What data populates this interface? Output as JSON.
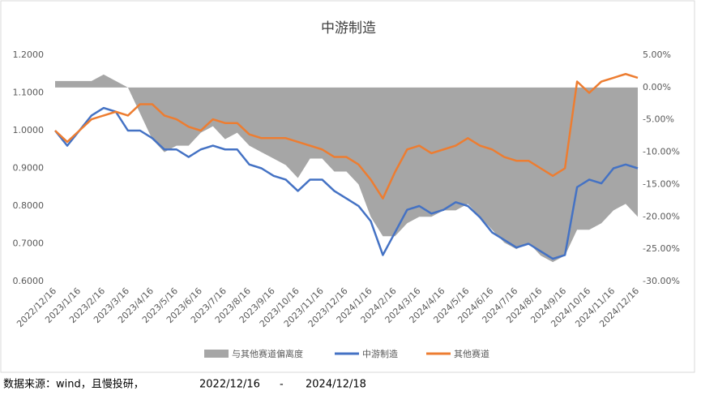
{
  "chart_data": {
    "type": "line",
    "title": "中游制造",
    "categories": [
      "2022/12/16",
      null,
      "2023/1/16",
      null,
      "2023/2/16",
      null,
      "2023/3/16",
      null,
      "2023/4/16",
      null,
      "2023/5/16",
      null,
      "2023/6/16",
      null,
      "2023/7/16",
      null,
      "2023/8/16",
      null,
      "2023/9/16",
      null,
      "2023/10/16",
      null,
      "2023/11/16",
      null,
      "2023/12/16",
      null,
      "2024/1/16",
      null,
      "2024/2/16",
      null,
      "2024/3/16",
      null,
      "2024/4/16",
      null,
      "2024/5/16",
      null,
      "2024/6/16",
      null,
      "2024/7/16",
      null,
      "2024/8/16",
      null,
      "2024/9/16",
      null,
      "2024/10/16",
      null,
      "2024/11/16",
      null,
      "2024/12/16"
    ],
    "series": [
      {
        "name": "与其他赛道偏离度",
        "kind": "area",
        "axis": "y2",
        "color": "#a6a6a6",
        "values": [
          1,
          1,
          1,
          1,
          2,
          1,
          0,
          -4,
          -8,
          -10,
          -9,
          -9,
          -7,
          -6,
          -8,
          -7,
          -9,
          -10,
          -11,
          -12,
          -14,
          -11,
          -11,
          -13,
          -13,
          -15,
          -20,
          -23,
          -23,
          -21,
          -20,
          -20,
          -19,
          -19,
          -18,
          -20,
          -22,
          -24,
          -25,
          -24,
          -26,
          -27,
          -26,
          -22,
          -22,
          -21,
          -19,
          -18,
          -20
        ]
      },
      {
        "name": "中游制造",
        "color": "#4472c4",
        "values": [
          1.0,
          0.96,
          1.0,
          1.04,
          1.06,
          1.05,
          1.0,
          1.0,
          0.98,
          0.95,
          0.95,
          0.93,
          0.95,
          0.96,
          0.95,
          0.95,
          0.91,
          0.9,
          0.88,
          0.87,
          0.84,
          0.87,
          0.87,
          0.84,
          0.82,
          0.8,
          0.76,
          0.67,
          0.73,
          0.79,
          0.8,
          0.78,
          0.79,
          0.81,
          0.8,
          0.77,
          0.73,
          0.71,
          0.69,
          0.7,
          0.68,
          0.66,
          0.67,
          0.85,
          0.87,
          0.86,
          0.9,
          0.91,
          0.9
        ]
      },
      {
        "name": "其他赛道",
        "color": "#ed7d31",
        "values": [
          1.0,
          0.97,
          1.0,
          1.03,
          1.04,
          1.05,
          1.04,
          1.07,
          1.07,
          1.04,
          1.03,
          1.01,
          1.0,
          1.03,
          1.02,
          1.02,
          0.99,
          0.98,
          0.98,
          0.98,
          0.97,
          0.96,
          0.95,
          0.93,
          0.93,
          0.91,
          0.87,
          0.82,
          0.89,
          0.95,
          0.96,
          0.94,
          0.95,
          0.96,
          0.98,
          0.96,
          0.95,
          0.93,
          0.92,
          0.92,
          0.9,
          0.88,
          0.9,
          1.13,
          1.1,
          1.13,
          1.14,
          1.15,
          1.14
        ]
      }
    ],
    "ylim": [
      0.6,
      1.2
    ],
    "yticks": [
      {
        "value": 0.6,
        "label": "0.6000"
      },
      {
        "value": 0.7,
        "label": "0.7000"
      },
      {
        "value": 0.8,
        "label": "0.8000"
      },
      {
        "value": 0.9,
        "label": "0.9000"
      },
      {
        "value": 1.0,
        "label": "1.0000"
      },
      {
        "value": 1.1,
        "label": "1.1000"
      },
      {
        "value": 1.2,
        "label": "1.2000"
      }
    ],
    "y2lim": [
      -30,
      5
    ],
    "y2ticks": [
      {
        "value": -30,
        "label": "-30.00%"
      },
      {
        "value": -25,
        "label": "-25.00%"
      },
      {
        "value": -20,
        "label": "-20.00%"
      },
      {
        "value": -15,
        "label": "-15.00%"
      },
      {
        "value": -10,
        "label": "-10.00%"
      },
      {
        "value": -5,
        "label": "-5.00%"
      },
      {
        "value": 0,
        "label": "0.00%"
      },
      {
        "value": 5,
        "label": "5.00%"
      }
    ],
    "legend": "bottom"
  },
  "footer": {
    "source": "数据来源：wind，且慢投研，",
    "start": "2022/12/16",
    "separator": "-",
    "end": "2024/12/18"
  }
}
